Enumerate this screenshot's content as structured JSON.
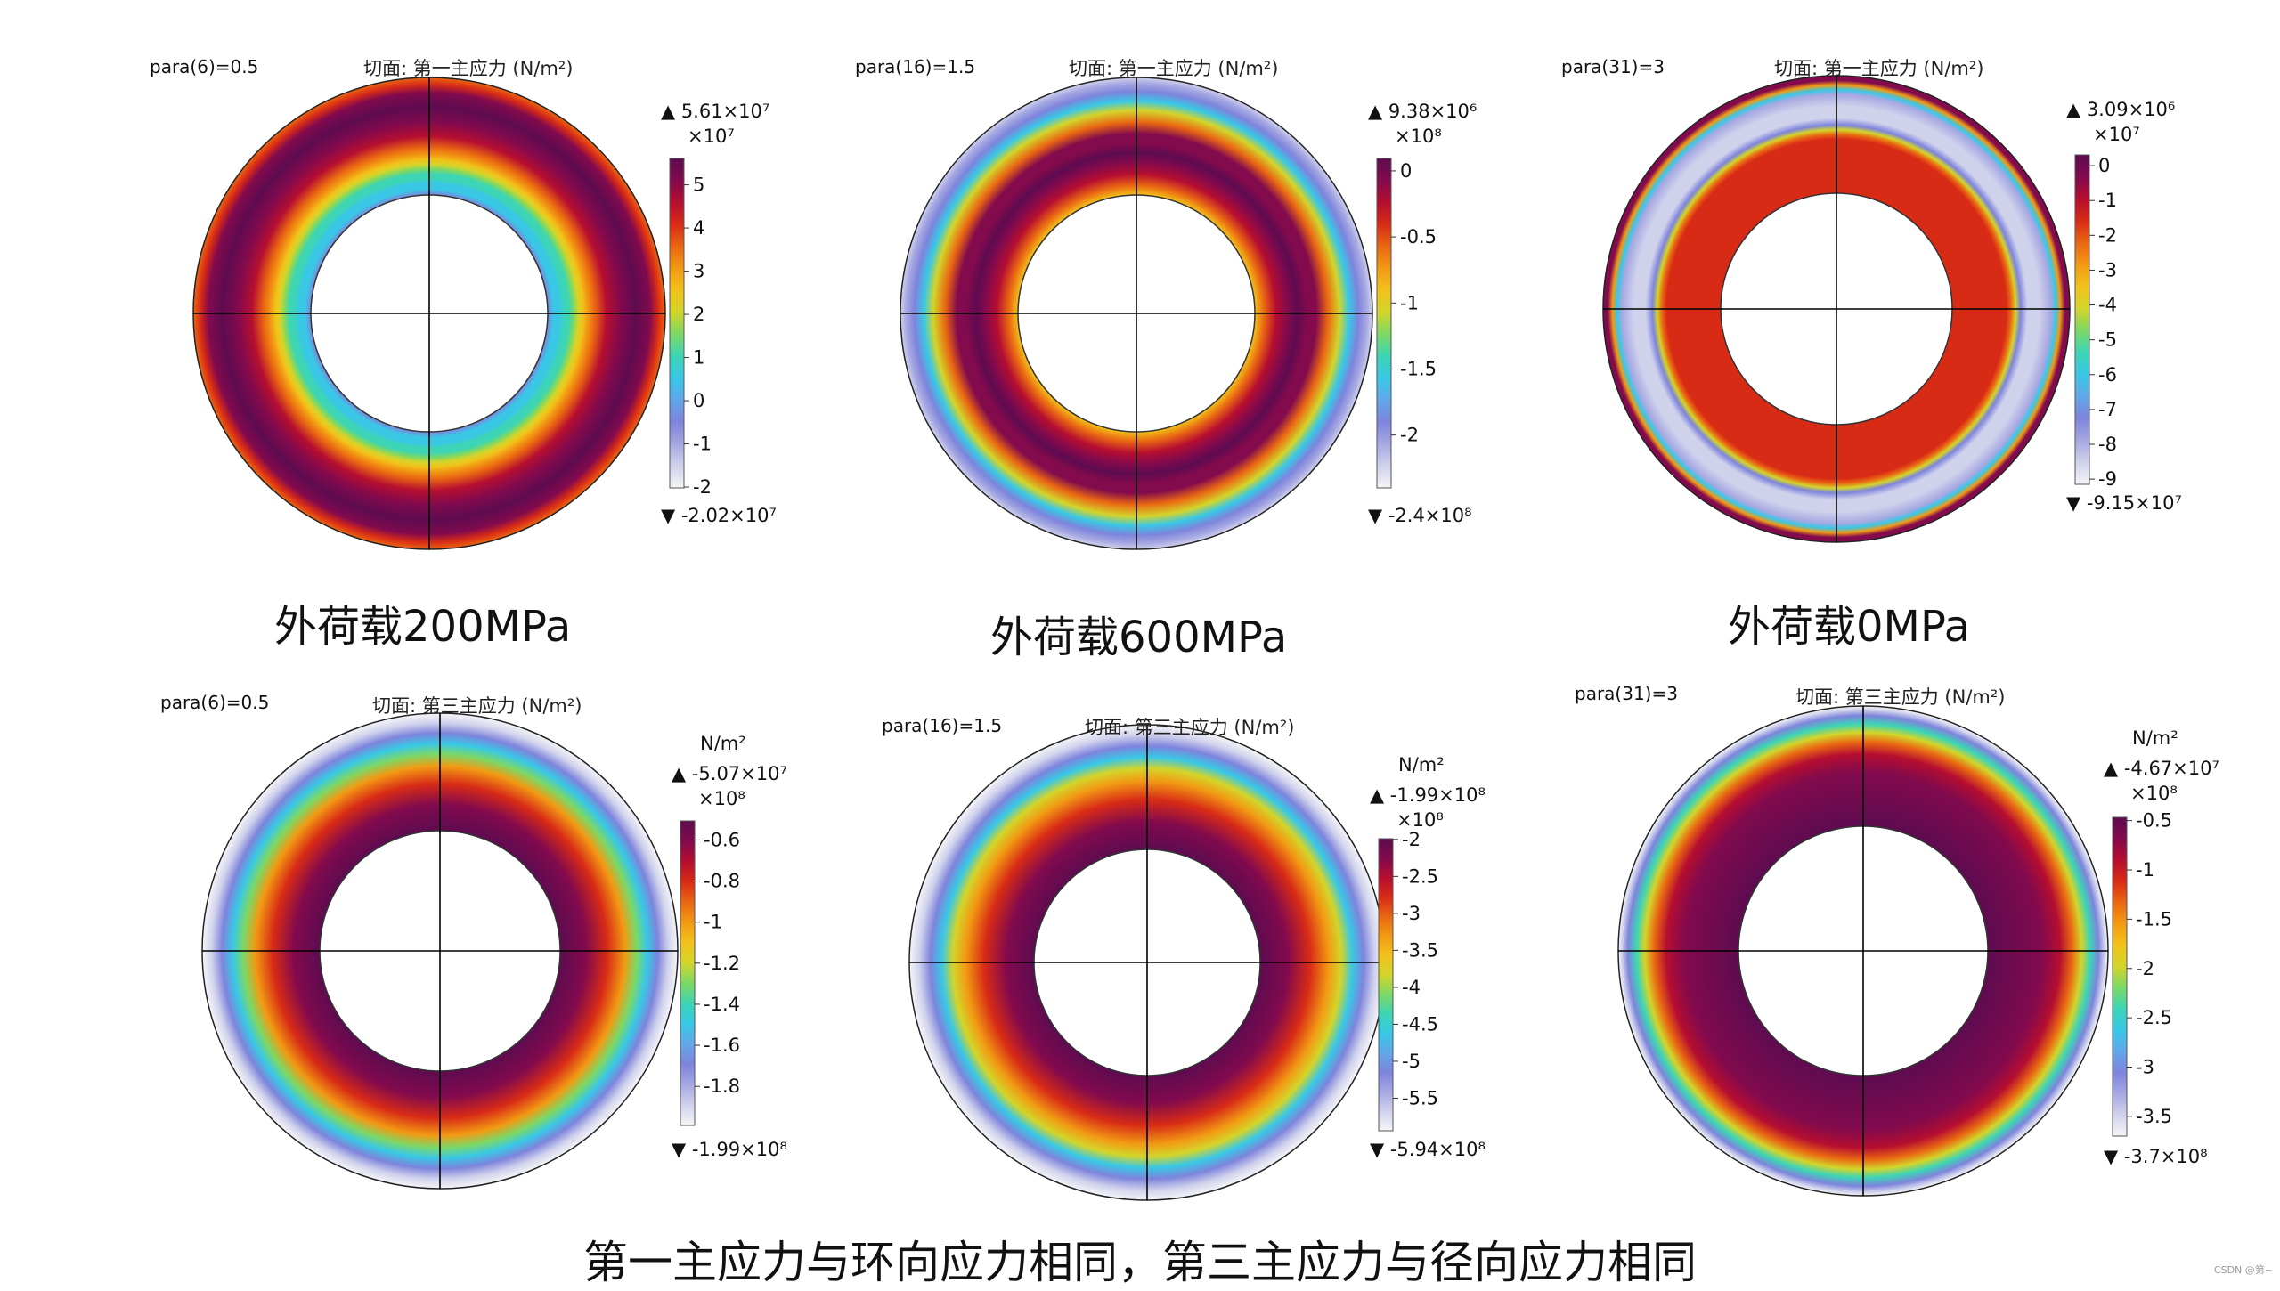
{
  "colors": {
    "background": "#ffffff",
    "text": "#1a1a1a",
    "gridline": "#000000",
    "colormap": [
      "#f5f5f7",
      "#d0d2ec",
      "#a6a8e2",
      "#7e84dc",
      "#62a7ea",
      "#38c8e6",
      "#3cd5b5",
      "#7cd865",
      "#d3d52a",
      "#f2c21a",
      "#f29a13",
      "#ea6712",
      "#d82b16",
      "#b60e30",
      "#820a4d",
      "#5e0b50"
    ]
  },
  "panels": [
    {
      "id": "p1",
      "para": "para(6)=0.5",
      "title": "切面: 第一主应力 (N/m²)",
      "unit": "",
      "max_label": "▲ 5.61×10⁷",
      "min_label": "▼ -2.02×10⁷",
      "scale": "×10⁷",
      "ticks": [
        "5",
        "4",
        "3",
        "2",
        "1",
        "0",
        "-1",
        "-2"
      ],
      "tick_values": [
        5,
        4,
        3,
        2,
        1,
        0,
        -1,
        -2
      ],
      "range": [
        -2.02,
        5.61
      ],
      "stops": [
        [
          0,
          -0.3
        ],
        [
          0.05,
          0.3
        ],
        [
          0.1,
          0.75
        ],
        [
          0.14,
          1.0
        ],
        [
          0.18,
          1.25
        ],
        [
          0.22,
          1.7
        ],
        [
          0.26,
          2.2
        ],
        [
          0.3,
          2.6
        ],
        [
          0.34,
          3.2
        ],
        [
          0.4,
          3.8
        ],
        [
          0.5,
          4.4
        ],
        [
          0.62,
          5.1
        ],
        [
          0.75,
          5.6
        ],
        [
          0.87,
          4.9
        ],
        [
          0.94,
          4.3
        ],
        [
          1.0,
          3.7
        ]
      ]
    },
    {
      "id": "p2",
      "para": "para(16)=1.5",
      "title": "切面: 第一主应力 (N/m²)",
      "unit": "",
      "max_label": "▲ 9.38×10⁶",
      "min_label": "▼ -2.4×10⁸",
      "scale": "×10⁸",
      "ticks": [
        "0",
        "-0.5",
        "-1",
        "-1.5",
        "-2"
      ],
      "tick_values": [
        0,
        -0.5,
        -1,
        -1.5,
        -2
      ],
      "range": [
        -2.4,
        0.0938
      ],
      "stops": [
        [
          0,
          -0.92
        ],
        [
          0.08,
          -0.55
        ],
        [
          0.18,
          -0.25
        ],
        [
          0.28,
          -0.05
        ],
        [
          0.36,
          0.05
        ],
        [
          0.44,
          -0.02
        ],
        [
          0.52,
          -0.12
        ],
        [
          0.62,
          -0.6
        ],
        [
          0.72,
          -1.1
        ],
        [
          0.8,
          -1.5
        ],
        [
          0.88,
          -1.85
        ],
        [
          0.95,
          -2.1
        ],
        [
          1.0,
          -2.25
        ]
      ]
    },
    {
      "id": "p3",
      "para": "para(31)=3",
      "title": "切面: 第一主应力 (N/m²)",
      "unit": "",
      "max_label": "▲ 3.09×10⁶",
      "min_label": "▼ -9.15×10⁷",
      "scale": "×10⁷",
      "ticks": [
        "0",
        "-1",
        "-2",
        "-3",
        "-4",
        "-5",
        "-6",
        "-7",
        "-8",
        "-9"
      ],
      "tick_values": [
        0,
        -1,
        -2,
        -3,
        -4,
        -5,
        -6,
        -7,
        -8,
        -9
      ],
      "range": [
        -9.15,
        0.309
      ],
      "stops": [
        [
          0,
          -1.7
        ],
        [
          0.36,
          -1.7
        ],
        [
          0.46,
          -1.8
        ],
        [
          0.5,
          -2.2
        ],
        [
          0.54,
          -4.2
        ],
        [
          0.58,
          -7.5
        ],
        [
          0.64,
          -8.4
        ],
        [
          0.74,
          -8.6
        ],
        [
          0.84,
          -8.2
        ],
        [
          0.88,
          -6.0
        ],
        [
          0.92,
          -2.6
        ],
        [
          0.96,
          -0.6
        ],
        [
          1.0,
          -0.4
        ]
      ]
    },
    {
      "id": "p4",
      "para": "para(6)=0.5",
      "title": "切面: 第三主应力 (N/m²)",
      "unit": "N/m²",
      "max_label": "▲ -5.07×10⁷",
      "min_label": "▼ -1.99×10⁸",
      "scale": "×10⁸",
      "ticks": [
        "-0.6",
        "-0.8",
        "-1",
        "-1.2",
        "-1.4",
        "-1.6",
        "-1.8"
      ],
      "tick_values": [
        -0.6,
        -0.8,
        -1,
        -1.2,
        -1.4,
        -1.6,
        -1.8
      ],
      "range": [
        -1.99,
        -0.507
      ],
      "stops": [
        [
          0,
          -0.55
        ],
        [
          0.22,
          -0.65
        ],
        [
          0.4,
          -0.85
        ],
        [
          0.55,
          -1.05
        ],
        [
          0.65,
          -1.25
        ],
        [
          0.74,
          -1.45
        ],
        [
          0.83,
          -1.65
        ],
        [
          0.92,
          -1.85
        ],
        [
          1.0,
          -1.97
        ]
      ]
    },
    {
      "id": "p5",
      "para": "para(16)=1.5",
      "title": "切面: 第三主应力 (N/m²)",
      "unit": "N/m²",
      "max_label": "▲ -1.99×10⁸",
      "min_label": "▼ -5.94×10⁸",
      "scale": "×10⁸",
      "ticks": [
        "-2",
        "-2.5",
        "-3",
        "-3.5",
        "-4",
        "-4.5",
        "-5",
        "-5.5"
      ],
      "tick_values": [
        -2,
        -2.5,
        -3,
        -3.5,
        -4,
        -4.5,
        -5,
        -5.5
      ],
      "range": [
        -5.94,
        -1.99
      ],
      "stops": [
        [
          0,
          -2.0
        ],
        [
          0.22,
          -2.2
        ],
        [
          0.4,
          -2.8
        ],
        [
          0.55,
          -3.4
        ],
        [
          0.65,
          -3.95
        ],
        [
          0.74,
          -4.5
        ],
        [
          0.83,
          -5.05
        ],
        [
          0.92,
          -5.6
        ],
        [
          1.0,
          -5.9
        ]
      ]
    },
    {
      "id": "p6",
      "para": "para(31)=3",
      "title": "切面: 第三主应力 (N/m²)",
      "unit": "N/m²",
      "max_label": "▲ -4.67×10⁷",
      "min_label": "▼ -3.7×10⁸",
      "scale": "×10⁸",
      "ticks": [
        "-0.5",
        "-1",
        "-1.5",
        "-2",
        "-2.5",
        "-3",
        "-3.5"
      ],
      "tick_values": [
        -0.5,
        -1,
        -1.5,
        -2,
        -2.5,
        -3,
        -3.5
      ],
      "range": [
        -3.7,
        -0.467
      ],
      "stops": [
        [
          0,
          -0.5
        ],
        [
          0.45,
          -0.6
        ],
        [
          0.6,
          -0.85
        ],
        [
          0.7,
          -1.3
        ],
        [
          0.78,
          -1.9
        ],
        [
          0.85,
          -2.5
        ],
        [
          0.92,
          -3.1
        ],
        [
          0.97,
          -3.5
        ],
        [
          1.0,
          -3.65
        ]
      ]
    }
  ],
  "captions": [
    "外荷载200MPa",
    "外荷载600MPa",
    "外荷载0MPa"
  ],
  "bottom_note": "第一主应力与环向应力相同，第三主应力与径向应力相同",
  "watermark": "CSDN @第~"
}
